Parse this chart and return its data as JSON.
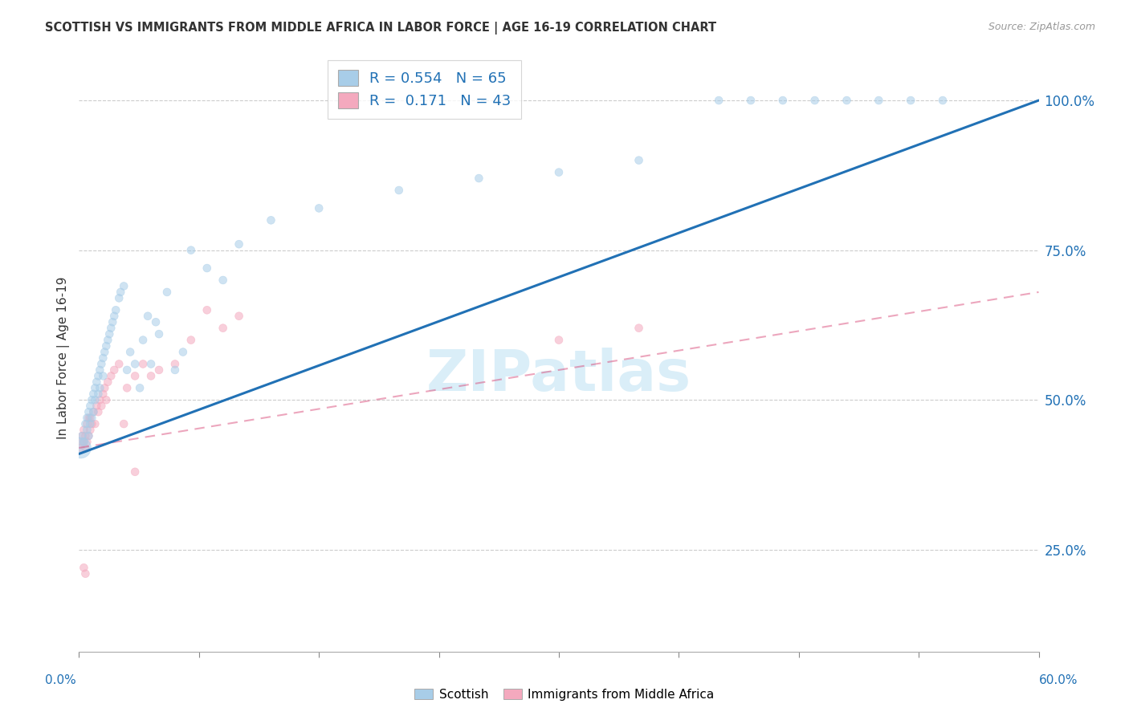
{
  "title": "SCOTTISH VS IMMIGRANTS FROM MIDDLE AFRICA IN LABOR FORCE | AGE 16-19 CORRELATION CHART",
  "source": "Source: ZipAtlas.com",
  "ylabel": "In Labor Force | Age 16-19",
  "yticks": [
    0.25,
    0.5,
    0.75,
    1.0
  ],
  "ytick_labels": [
    "25.0%",
    "50.0%",
    "75.0%",
    "100.0%"
  ],
  "xlim": [
    0.0,
    0.6
  ],
  "ylim": [
    0.08,
    1.06
  ],
  "legend1_R": "0.554",
  "legend1_N": "65",
  "legend2_R": "0.171",
  "legend2_N": "43",
  "legend_label1": "Scottish",
  "legend_label2": "Immigrants from Middle Africa",
  "blue_color": "#a8cde8",
  "pink_color": "#f4a9be",
  "trend_blue": "#2171b5",
  "trend_pink": "#d63b6e",
  "trend_pink_alpha": 0.45,
  "watermark_color": "#daeef8",
  "scottish_x": [
    0.001,
    0.002,
    0.003,
    0.004,
    0.005,
    0.005,
    0.006,
    0.006,
    0.007,
    0.007,
    0.008,
    0.008,
    0.009,
    0.009,
    0.01,
    0.01,
    0.011,
    0.012,
    0.012,
    0.013,
    0.013,
    0.014,
    0.015,
    0.015,
    0.016,
    0.017,
    0.018,
    0.019,
    0.02,
    0.021,
    0.022,
    0.023,
    0.025,
    0.026,
    0.028,
    0.03,
    0.032,
    0.035,
    0.038,
    0.04,
    0.043,
    0.045,
    0.048,
    0.05,
    0.055,
    0.06,
    0.065,
    0.07,
    0.08,
    0.09,
    0.1,
    0.12,
    0.15,
    0.2,
    0.25,
    0.3,
    0.35,
    0.4,
    0.42,
    0.44,
    0.46,
    0.48,
    0.5,
    0.52,
    0.54
  ],
  "scottish_y": [
    0.42,
    0.44,
    0.43,
    0.46,
    0.45,
    0.47,
    0.44,
    0.48,
    0.46,
    0.49,
    0.5,
    0.47,
    0.51,
    0.48,
    0.5,
    0.52,
    0.53,
    0.54,
    0.51,
    0.55,
    0.52,
    0.56,
    0.54,
    0.57,
    0.58,
    0.59,
    0.6,
    0.61,
    0.62,
    0.63,
    0.64,
    0.65,
    0.67,
    0.68,
    0.69,
    0.55,
    0.58,
    0.56,
    0.52,
    0.6,
    0.64,
    0.56,
    0.63,
    0.61,
    0.68,
    0.55,
    0.58,
    0.75,
    0.72,
    0.7,
    0.76,
    0.8,
    0.82,
    0.85,
    0.87,
    0.88,
    0.9,
    1.0,
    1.0,
    1.0,
    1.0,
    1.0,
    1.0,
    1.0,
    1.0
  ],
  "scottish_sizes": [
    350,
    50,
    50,
    50,
    50,
    50,
    50,
    50,
    50,
    50,
    50,
    50,
    50,
    50,
    50,
    50,
    50,
    50,
    50,
    50,
    50,
    50,
    50,
    50,
    50,
    50,
    50,
    50,
    50,
    50,
    50,
    50,
    50,
    50,
    50,
    50,
    50,
    50,
    50,
    50,
    50,
    50,
    50,
    50,
    50,
    50,
    50,
    50,
    50,
    50,
    50,
    50,
    50,
    50,
    50,
    50,
    50,
    50,
    50,
    50,
    50,
    50,
    50,
    50,
    50
  ],
  "immigrant_x": [
    0.001,
    0.002,
    0.002,
    0.003,
    0.003,
    0.004,
    0.004,
    0.005,
    0.005,
    0.006,
    0.006,
    0.007,
    0.007,
    0.008,
    0.009,
    0.01,
    0.011,
    0.012,
    0.013,
    0.014,
    0.015,
    0.016,
    0.017,
    0.018,
    0.02,
    0.022,
    0.025,
    0.028,
    0.03,
    0.035,
    0.04,
    0.045,
    0.05,
    0.06,
    0.07,
    0.08,
    0.09,
    0.1,
    0.3,
    0.35,
    0.003,
    0.004,
    0.035
  ],
  "immigrant_y": [
    0.42,
    0.44,
    0.43,
    0.43,
    0.45,
    0.42,
    0.44,
    0.43,
    0.46,
    0.44,
    0.47,
    0.45,
    0.47,
    0.46,
    0.48,
    0.46,
    0.49,
    0.48,
    0.5,
    0.49,
    0.51,
    0.52,
    0.5,
    0.53,
    0.54,
    0.55,
    0.56,
    0.46,
    0.52,
    0.54,
    0.56,
    0.54,
    0.55,
    0.56,
    0.6,
    0.65,
    0.62,
    0.64,
    0.6,
    0.62,
    0.22,
    0.21,
    0.38
  ],
  "immigrant_sizes": [
    50,
    50,
    50,
    50,
    50,
    50,
    50,
    50,
    50,
    50,
    50,
    50,
    50,
    50,
    50,
    50,
    50,
    50,
    50,
    50,
    50,
    50,
    50,
    50,
    50,
    50,
    50,
    50,
    50,
    50,
    50,
    50,
    50,
    50,
    50,
    50,
    50,
    50,
    50,
    50,
    50,
    50,
    50
  ],
  "trend_blue_x0": 0.0,
  "trend_blue_y0": 0.41,
  "trend_blue_x1": 0.6,
  "trend_blue_y1": 1.0,
  "trend_pink_x0": 0.0,
  "trend_pink_y0": 0.42,
  "trend_pink_x1": 0.6,
  "trend_pink_y1": 0.68
}
